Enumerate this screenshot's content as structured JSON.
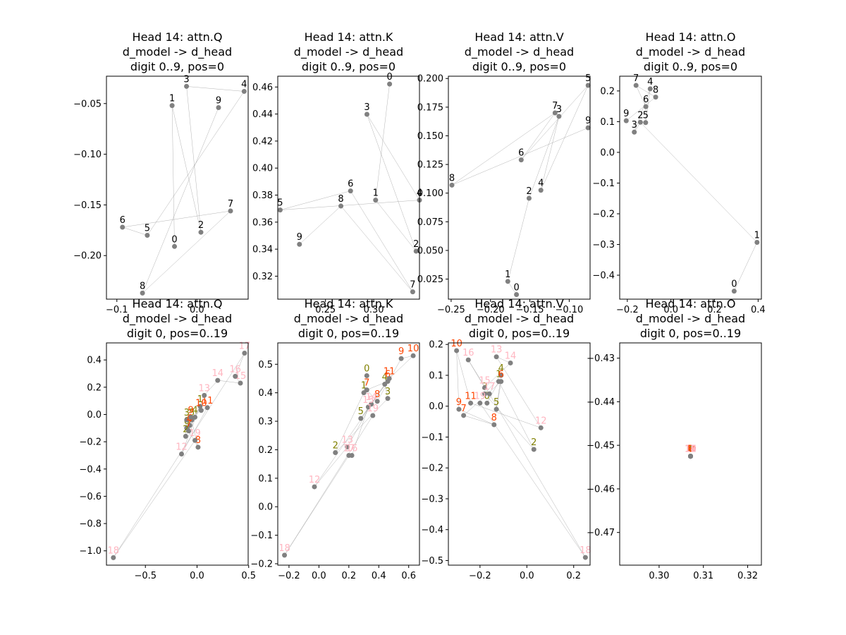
{
  "figure": {
    "background": "#ffffff"
  },
  "chart_data": [
    {
      "type": "scatter",
      "title": [
        "Head 14: attn.Q",
        "d_model -> d_head",
        "digit 0..9, pos=0"
      ],
      "xlim": [
        -0.113,
        0.064
      ],
      "ylim": [
        -0.243,
        -0.023
      ],
      "xticks": [
        -0.1,
        0.0
      ],
      "xtick_labels": [
        "−0.1",
        "0.0"
      ],
      "yticks": [
        -0.2,
        -0.15,
        -0.1,
        -0.05
      ],
      "ytick_labels": [
        "−0.20",
        "−0.15",
        "−0.10",
        "−0.05"
      ],
      "points": [
        {
          "label": "0",
          "x": -0.028,
          "y": -0.191,
          "color": "#000000"
        },
        {
          "label": "1",
          "x": -0.031,
          "y": -0.052,
          "color": "#000000"
        },
        {
          "label": "2",
          "x": 0.005,
          "y": -0.177,
          "color": "#000000"
        },
        {
          "label": "3",
          "x": -0.013,
          "y": -0.033,
          "color": "#000000"
        },
        {
          "label": "4",
          "x": 0.059,
          "y": -0.038,
          "color": "#000000"
        },
        {
          "label": "5",
          "x": -0.062,
          "y": -0.18,
          "color": "#000000"
        },
        {
          "label": "6",
          "x": -0.093,
          "y": -0.172,
          "color": "#000000"
        },
        {
          "label": "7",
          "x": 0.042,
          "y": -0.156,
          "color": "#000000"
        },
        {
          "label": "8",
          "x": -0.068,
          "y": -0.237,
          "color": "#000000"
        },
        {
          "label": "9",
          "x": 0.027,
          "y": -0.054,
          "color": "#000000"
        }
      ]
    },
    {
      "type": "scatter",
      "title": [
        "Head 14: attn.K",
        "d_model -> d_head",
        "digit 0..9, pos=0"
      ],
      "xlim": [
        0.2005,
        0.3475
      ],
      "ylim": [
        0.303,
        0.468
      ],
      "xticks": [
        0.25,
        0.3
      ],
      "xtick_labels": [
        "0.25",
        "0.30"
      ],
      "yticks": [
        0.32,
        0.34,
        0.36,
        0.38,
        0.4,
        0.42,
        0.44,
        0.46
      ],
      "ytick_labels": [
        "0.32",
        "0.34",
        "0.36",
        "0.38",
        "0.40",
        "0.42",
        "0.44",
        "0.46"
      ],
      "points": [
        {
          "label": "0",
          "x": 0.3165,
          "y": 0.4622,
          "color": "#000000"
        },
        {
          "label": "1",
          "x": 0.302,
          "y": 0.3763,
          "color": "#000000"
        },
        {
          "label": "2",
          "x": 0.344,
          "y": 0.3385,
          "color": "#000000"
        },
        {
          "label": "3",
          "x": 0.293,
          "y": 0.4398,
          "color": "#000000"
        },
        {
          "label": "4",
          "x": 0.3475,
          "y": 0.3763,
          "color": "#000000"
        },
        {
          "label": "5",
          "x": 0.203,
          "y": 0.369,
          "color": "#000000"
        },
        {
          "label": "6",
          "x": 0.276,
          "y": 0.3831,
          "color": "#000000"
        },
        {
          "label": "7",
          "x": 0.3405,
          "y": 0.3084,
          "color": "#000000"
        },
        {
          "label": "8",
          "x": 0.266,
          "y": 0.3719,
          "color": "#000000"
        },
        {
          "label": "9",
          "x": 0.223,
          "y": 0.3436,
          "color": "#000000"
        }
      ]
    },
    {
      "type": "scatter",
      "title": [
        "Head 14: attn.V",
        "d_model -> d_head",
        "digit 0..9, pos=0"
      ],
      "xlim": [
        -0.2535,
        -0.0735
      ],
      "ylim": [
        0.0075,
        0.202
      ],
      "xticks": [
        -0.25,
        -0.2,
        -0.15,
        -0.1
      ],
      "xtick_labels": [
        "−0.25",
        "−0.20",
        "−0.15",
        "−0.10"
      ],
      "yticks": [
        0.025,
        0.05,
        0.075,
        0.1,
        0.125,
        0.15,
        0.175,
        0.2
      ],
      "ytick_labels": [
        "0.025",
        "0.050",
        "0.075",
        "0.100",
        "0.125",
        "0.150",
        "0.175",
        "0.200"
      ],
      "points": [
        {
          "label": "0",
          "x": -0.167,
          "y": 0.0115,
          "color": "#000000"
        },
        {
          "label": "1",
          "x": -0.178,
          "y": 0.023,
          "color": "#000000"
        },
        {
          "label": "2",
          "x": -0.151,
          "y": 0.0955,
          "color": "#000000"
        },
        {
          "label": "3",
          "x": -0.113,
          "y": 0.167,
          "color": "#000000"
        },
        {
          "label": "4",
          "x": -0.136,
          "y": 0.1025,
          "color": "#000000"
        },
        {
          "label": "5",
          "x": -0.076,
          "y": 0.194,
          "color": "#000000"
        },
        {
          "label": "6",
          "x": -0.161,
          "y": 0.129,
          "color": "#000000"
        },
        {
          "label": "7",
          "x": -0.118,
          "y": 0.17,
          "color": "#000000"
        },
        {
          "label": "8",
          "x": -0.249,
          "y": 0.107,
          "color": "#000000"
        },
        {
          "label": "9",
          "x": -0.076,
          "y": 0.157,
          "color": "#000000"
        }
      ]
    },
    {
      "type": "scatter",
      "title": [
        "Head 14: attn.O",
        "d_model -> d_head",
        "digit 0..9, pos=0"
      ],
      "xlim": [
        -0.235,
        0.415
      ],
      "ylim": [
        -0.478,
        0.248
      ],
      "xticks": [
        -0.2,
        0.0,
        0.2,
        0.4
      ],
      "xtick_labels": [
        "−0.2",
        "0.0",
        "0.2",
        "0.4"
      ],
      "yticks": [
        -0.4,
        -0.3,
        -0.2,
        -0.1,
        0.0,
        0.1,
        0.2
      ],
      "ytick_labels": [
        "−0.4",
        "−0.3",
        "−0.2",
        "−0.1",
        "0.0",
        "0.1",
        "0.2"
      ],
      "points": [
        {
          "label": "0",
          "x": 0.29,
          "y": -0.452,
          "color": "#000000"
        },
        {
          "label": "1",
          "x": 0.395,
          "y": -0.293,
          "color": "#000000"
        },
        {
          "label": "2",
          "x": -0.14,
          "y": 0.098,
          "color": "#000000"
        },
        {
          "label": "3",
          "x": -0.168,
          "y": 0.066,
          "color": "#000000"
        },
        {
          "label": "4",
          "x": -0.095,
          "y": 0.207,
          "color": "#000000"
        },
        {
          "label": "5",
          "x": -0.116,
          "y": 0.097,
          "color": "#000000"
        },
        {
          "label": "6",
          "x": -0.115,
          "y": 0.149,
          "color": "#000000"
        },
        {
          "label": "7",
          "x": -0.16,
          "y": 0.218,
          "color": "#000000"
        },
        {
          "label": "8",
          "x": -0.07,
          "y": 0.18,
          "color": "#000000"
        },
        {
          "label": "9",
          "x": -0.205,
          "y": 0.103,
          "color": "#000000"
        }
      ]
    },
    {
      "type": "scatter",
      "title": [
        "Head 14: attn.Q",
        "d_model -> d_head",
        "digit 0, pos=0..19"
      ],
      "xlim": [
        -0.877,
        0.495
      ],
      "ylim": [
        -1.105,
        0.525
      ],
      "xticks": [
        -0.5,
        0.0,
        0.5
      ],
      "xtick_labels": [
        "−0.5",
        "0.0",
        "0.5"
      ],
      "yticks": [
        -1.0,
        -0.8,
        -0.6,
        -0.4,
        -0.2,
        0.0,
        0.2,
        0.4
      ],
      "ytick_labels": [
        "−1.0",
        "−0.8",
        "−0.6",
        "−0.4",
        "−0.2",
        "0.0",
        "0.2",
        "0.4"
      ],
      "points": [
        {
          "label": "0",
          "x": -0.1,
          "y": -0.1,
          "color": "#808000"
        },
        {
          "label": "1",
          "x": 0.03,
          "y": 0.06,
          "color": "#808000"
        },
        {
          "label": "2",
          "x": -0.11,
          "y": -0.16,
          "color": "#808000"
        },
        {
          "label": "3",
          "x": -0.1,
          "y": -0.04,
          "color": "#808000"
        },
        {
          "label": "4",
          "x": -0.02,
          "y": -0.02,
          "color": "#808000"
        },
        {
          "label": "5",
          "x": -0.05,
          "y": -0.04,
          "color": "#808000"
        },
        {
          "label": "6",
          "x": -0.07,
          "y": -0.08,
          "color": "#FF4500"
        },
        {
          "label": "7",
          "x": -0.08,
          "y": -0.12,
          "color": "#FF4500"
        },
        {
          "label": "8",
          "x": 0.01,
          "y": -0.24,
          "color": "#FF4500"
        },
        {
          "label": "9",
          "x": -0.06,
          "y": -0.02,
          "color": "#FF4500"
        },
        {
          "label": "10",
          "x": 0.04,
          "y": 0.03,
          "color": "#FF4500"
        },
        {
          "label": "11",
          "x": 0.1,
          "y": 0.05,
          "color": "#FF4500"
        },
        {
          "label": "12",
          "x": -0.15,
          "y": -0.29,
          "color": "#FFB6C1"
        },
        {
          "label": "13",
          "x": 0.07,
          "y": 0.14,
          "color": "#FFB6C1"
        },
        {
          "label": "14",
          "x": 0.2,
          "y": 0.25,
          "color": "#FFB6C1"
        },
        {
          "label": "15",
          "x": 0.42,
          "y": 0.23,
          "color": "#FFB6C1"
        },
        {
          "label": "16",
          "x": 0.37,
          "y": 0.28,
          "color": "#FFB6C1"
        },
        {
          "label": "17",
          "x": 0.46,
          "y": 0.45,
          "color": "#FFB6C1"
        },
        {
          "label": "18",
          "x": -0.81,
          "y": -1.05,
          "color": "#FFB6C1"
        },
        {
          "label": "19",
          "x": -0.02,
          "y": -0.19,
          "color": "#FFB6C1"
        }
      ]
    },
    {
      "type": "scatter",
      "title": [
        "Head 14: attn.K",
        "d_model -> d_head",
        "digit 0, pos=0..19"
      ],
      "xlim": [
        -0.275,
        0.672
      ],
      "ylim": [
        -0.205,
        0.575
      ],
      "xticks": [
        -0.2,
        0.0,
        0.2,
        0.4,
        0.6
      ],
      "xtick_labels": [
        "−0.2",
        "0.0",
        "0.2",
        "0.4",
        "0.6"
      ],
      "yticks": [
        -0.2,
        -0.1,
        0.0,
        0.1,
        0.2,
        0.3,
        0.4,
        0.5
      ],
      "ytick_labels": [
        "−0.2",
        "−0.1",
        "0.0",
        "0.1",
        "0.2",
        "0.3",
        "0.4",
        "0.5"
      ],
      "points": [
        {
          "label": "0",
          "x": 0.32,
          "y": 0.46,
          "color": "#808000"
        },
        {
          "label": "1",
          "x": 0.3,
          "y": 0.4,
          "color": "#808000"
        },
        {
          "label": "2",
          "x": 0.11,
          "y": 0.19,
          "color": "#808000"
        },
        {
          "label": "3",
          "x": 0.46,
          "y": 0.38,
          "color": "#808000"
        },
        {
          "label": "4",
          "x": 0.44,
          "y": 0.43,
          "color": "#808000"
        },
        {
          "label": "5",
          "x": 0.28,
          "y": 0.31,
          "color": "#808000"
        },
        {
          "label": "6",
          "x": 0.46,
          "y": 0.44,
          "color": "#FF4500"
        },
        {
          "label": "7",
          "x": 0.32,
          "y": 0.41,
          "color": "#FF4500"
        },
        {
          "label": "8",
          "x": 0.39,
          "y": 0.37,
          "color": "#FF4500"
        },
        {
          "label": "9",
          "x": 0.55,
          "y": 0.52,
          "color": "#FF4500"
        },
        {
          "label": "10",
          "x": 0.63,
          "y": 0.53,
          "color": "#FF4500"
        },
        {
          "label": "11",
          "x": 0.47,
          "y": 0.45,
          "color": "#FF4500"
        },
        {
          "label": "12",
          "x": -0.03,
          "y": 0.07,
          "color": "#FFB6C1"
        },
        {
          "label": "13",
          "x": 0.19,
          "y": 0.21,
          "color": "#FFB6C1"
        },
        {
          "label": "14",
          "x": 0.35,
          "y": 0.36,
          "color": "#FFB6C1"
        },
        {
          "label": "15",
          "x": 0.33,
          "y": 0.35,
          "color": "#FFB6C1"
        },
        {
          "label": "16",
          "x": 0.22,
          "y": 0.18,
          "color": "#FFB6C1"
        },
        {
          "label": "17",
          "x": 0.2,
          "y": 0.18,
          "color": "#FFB6C1"
        },
        {
          "label": "18",
          "x": -0.23,
          "y": -0.17,
          "color": "#FFB6C1"
        },
        {
          "label": "19",
          "x": 0.36,
          "y": 0.32,
          "color": "#FFB6C1"
        }
      ]
    },
    {
      "type": "scatter",
      "title": [
        "Head 14: attn.V",
        "d_model -> d_head",
        "digit 0, pos=0..19"
      ],
      "xlim": [
        -0.335,
        0.27
      ],
      "ylim": [
        -0.515,
        0.205
      ],
      "xticks": [
        -0.2,
        0.0,
        0.2
      ],
      "xtick_labels": [
        "−0.2",
        "0.0",
        "0.2"
      ],
      "yticks": [
        -0.5,
        -0.4,
        -0.3,
        -0.2,
        -0.1,
        0.0,
        0.1,
        0.2
      ],
      "ytick_labels": [
        "−0.5",
        "−0.4",
        "−0.3",
        "−0.2",
        "−0.1",
        "0.0",
        "0.1",
        "0.2"
      ],
      "points": [
        {
          "label": "0",
          "x": -0.17,
          "y": 0.01,
          "color": "#808000"
        },
        {
          "label": "1",
          "x": -0.12,
          "y": 0.08,
          "color": "#808000"
        },
        {
          "label": "2",
          "x": 0.03,
          "y": -0.14,
          "color": "#808000"
        },
        {
          "label": "3",
          "x": -0.18,
          "y": 0.04,
          "color": "#808000"
        },
        {
          "label": "4",
          "x": -0.11,
          "y": 0.1,
          "color": "#808000"
        },
        {
          "label": "5",
          "x": -0.13,
          "y": -0.01,
          "color": "#808000"
        },
        {
          "label": "6",
          "x": -0.11,
          "y": 0.08,
          "color": "#FF4500"
        },
        {
          "label": "7",
          "x": -0.27,
          "y": -0.03,
          "color": "#FF4500"
        },
        {
          "label": "8",
          "x": -0.14,
          "y": -0.06,
          "color": "#FF4500"
        },
        {
          "label": "9",
          "x": -0.29,
          "y": -0.01,
          "color": "#FF4500"
        },
        {
          "label": "10",
          "x": -0.3,
          "y": 0.18,
          "color": "#FF4500"
        },
        {
          "label": "11",
          "x": -0.24,
          "y": 0.01,
          "color": "#FF4500"
        },
        {
          "label": "12",
          "x": 0.06,
          "y": -0.07,
          "color": "#FFB6C1"
        },
        {
          "label": "13",
          "x": -0.13,
          "y": 0.16,
          "color": "#FFB6C1"
        },
        {
          "label": "14",
          "x": -0.07,
          "y": 0.14,
          "color": "#FFB6C1"
        },
        {
          "label": "15",
          "x": -0.18,
          "y": 0.06,
          "color": "#FFB6C1"
        },
        {
          "label": "16",
          "x": -0.25,
          "y": 0.15,
          "color": "#FFB6C1"
        },
        {
          "label": "17",
          "x": -0.16,
          "y": 0.04,
          "color": "#FFB6C1"
        },
        {
          "label": "18",
          "x": 0.25,
          "y": -0.49,
          "color": "#FFB6C1"
        },
        {
          "label": "19",
          "x": -0.2,
          "y": 0.01,
          "color": "#FFB6C1"
        }
      ]
    },
    {
      "type": "scatter",
      "title": [
        "Head 14: attn.O",
        "d_model -> d_head",
        "digit 0, pos=0..19"
      ],
      "xlim": [
        0.2911,
        0.3231
      ],
      "ylim": [
        -0.4775,
        -0.4265
      ],
      "xticks": [
        0.3,
        0.31,
        0.32
      ],
      "xtick_labels": [
        "0.30",
        "0.31",
        "0.32"
      ],
      "yticks": [
        -0.47,
        -0.46,
        -0.45,
        -0.44,
        -0.43
      ],
      "ytick_labels": [
        "−0.47",
        "−0.46",
        "−0.45",
        "−0.44",
        "−0.43"
      ],
      "points": [
        {
          "label": "0",
          "x": 0.3071,
          "y": -0.4525,
          "color": "#808000"
        },
        {
          "label": "1",
          "x": 0.3071,
          "y": -0.4525,
          "color": "#808000"
        },
        {
          "label": "2",
          "x": 0.3071,
          "y": -0.4525,
          "color": "#808000"
        },
        {
          "label": "3",
          "x": 0.3071,
          "y": -0.4525,
          "color": "#808000"
        },
        {
          "label": "4",
          "x": 0.3071,
          "y": -0.4525,
          "color": "#808000"
        },
        {
          "label": "5",
          "x": 0.3071,
          "y": -0.4525,
          "color": "#808000"
        },
        {
          "label": "6",
          "x": 0.3071,
          "y": -0.4525,
          "color": "#FF4500"
        },
        {
          "label": "7",
          "x": 0.3071,
          "y": -0.4525,
          "color": "#FF4500"
        },
        {
          "label": "8",
          "x": 0.3071,
          "y": -0.4525,
          "color": "#FF4500"
        },
        {
          "label": "9",
          "x": 0.3071,
          "y": -0.4525,
          "color": "#FF4500"
        },
        {
          "label": "10",
          "x": 0.3071,
          "y": -0.4525,
          "color": "#FF4500"
        },
        {
          "label": "11",
          "x": 0.3071,
          "y": -0.4525,
          "color": "#FF4500"
        },
        {
          "label": "12",
          "x": 0.3071,
          "y": -0.4525,
          "color": "#FFB6C1"
        },
        {
          "label": "13",
          "x": 0.3071,
          "y": -0.4525,
          "color": "#FFB6C1"
        },
        {
          "label": "14",
          "x": 0.3071,
          "y": -0.4525,
          "color": "#FFB6C1"
        },
        {
          "label": "15",
          "x": 0.3071,
          "y": -0.4525,
          "color": "#FFB6C1"
        },
        {
          "label": "16",
          "x": 0.3071,
          "y": -0.4525,
          "color": "#FFB6C1"
        },
        {
          "label": "17",
          "x": 0.3071,
          "y": -0.4525,
          "color": "#FFB6C1"
        },
        {
          "label": "18",
          "x": 0.3071,
          "y": -0.4525,
          "color": "#FFB6C1"
        },
        {
          "label": "19",
          "x": 0.3071,
          "y": -0.4525,
          "color": "#FFB6C1"
        }
      ]
    }
  ]
}
